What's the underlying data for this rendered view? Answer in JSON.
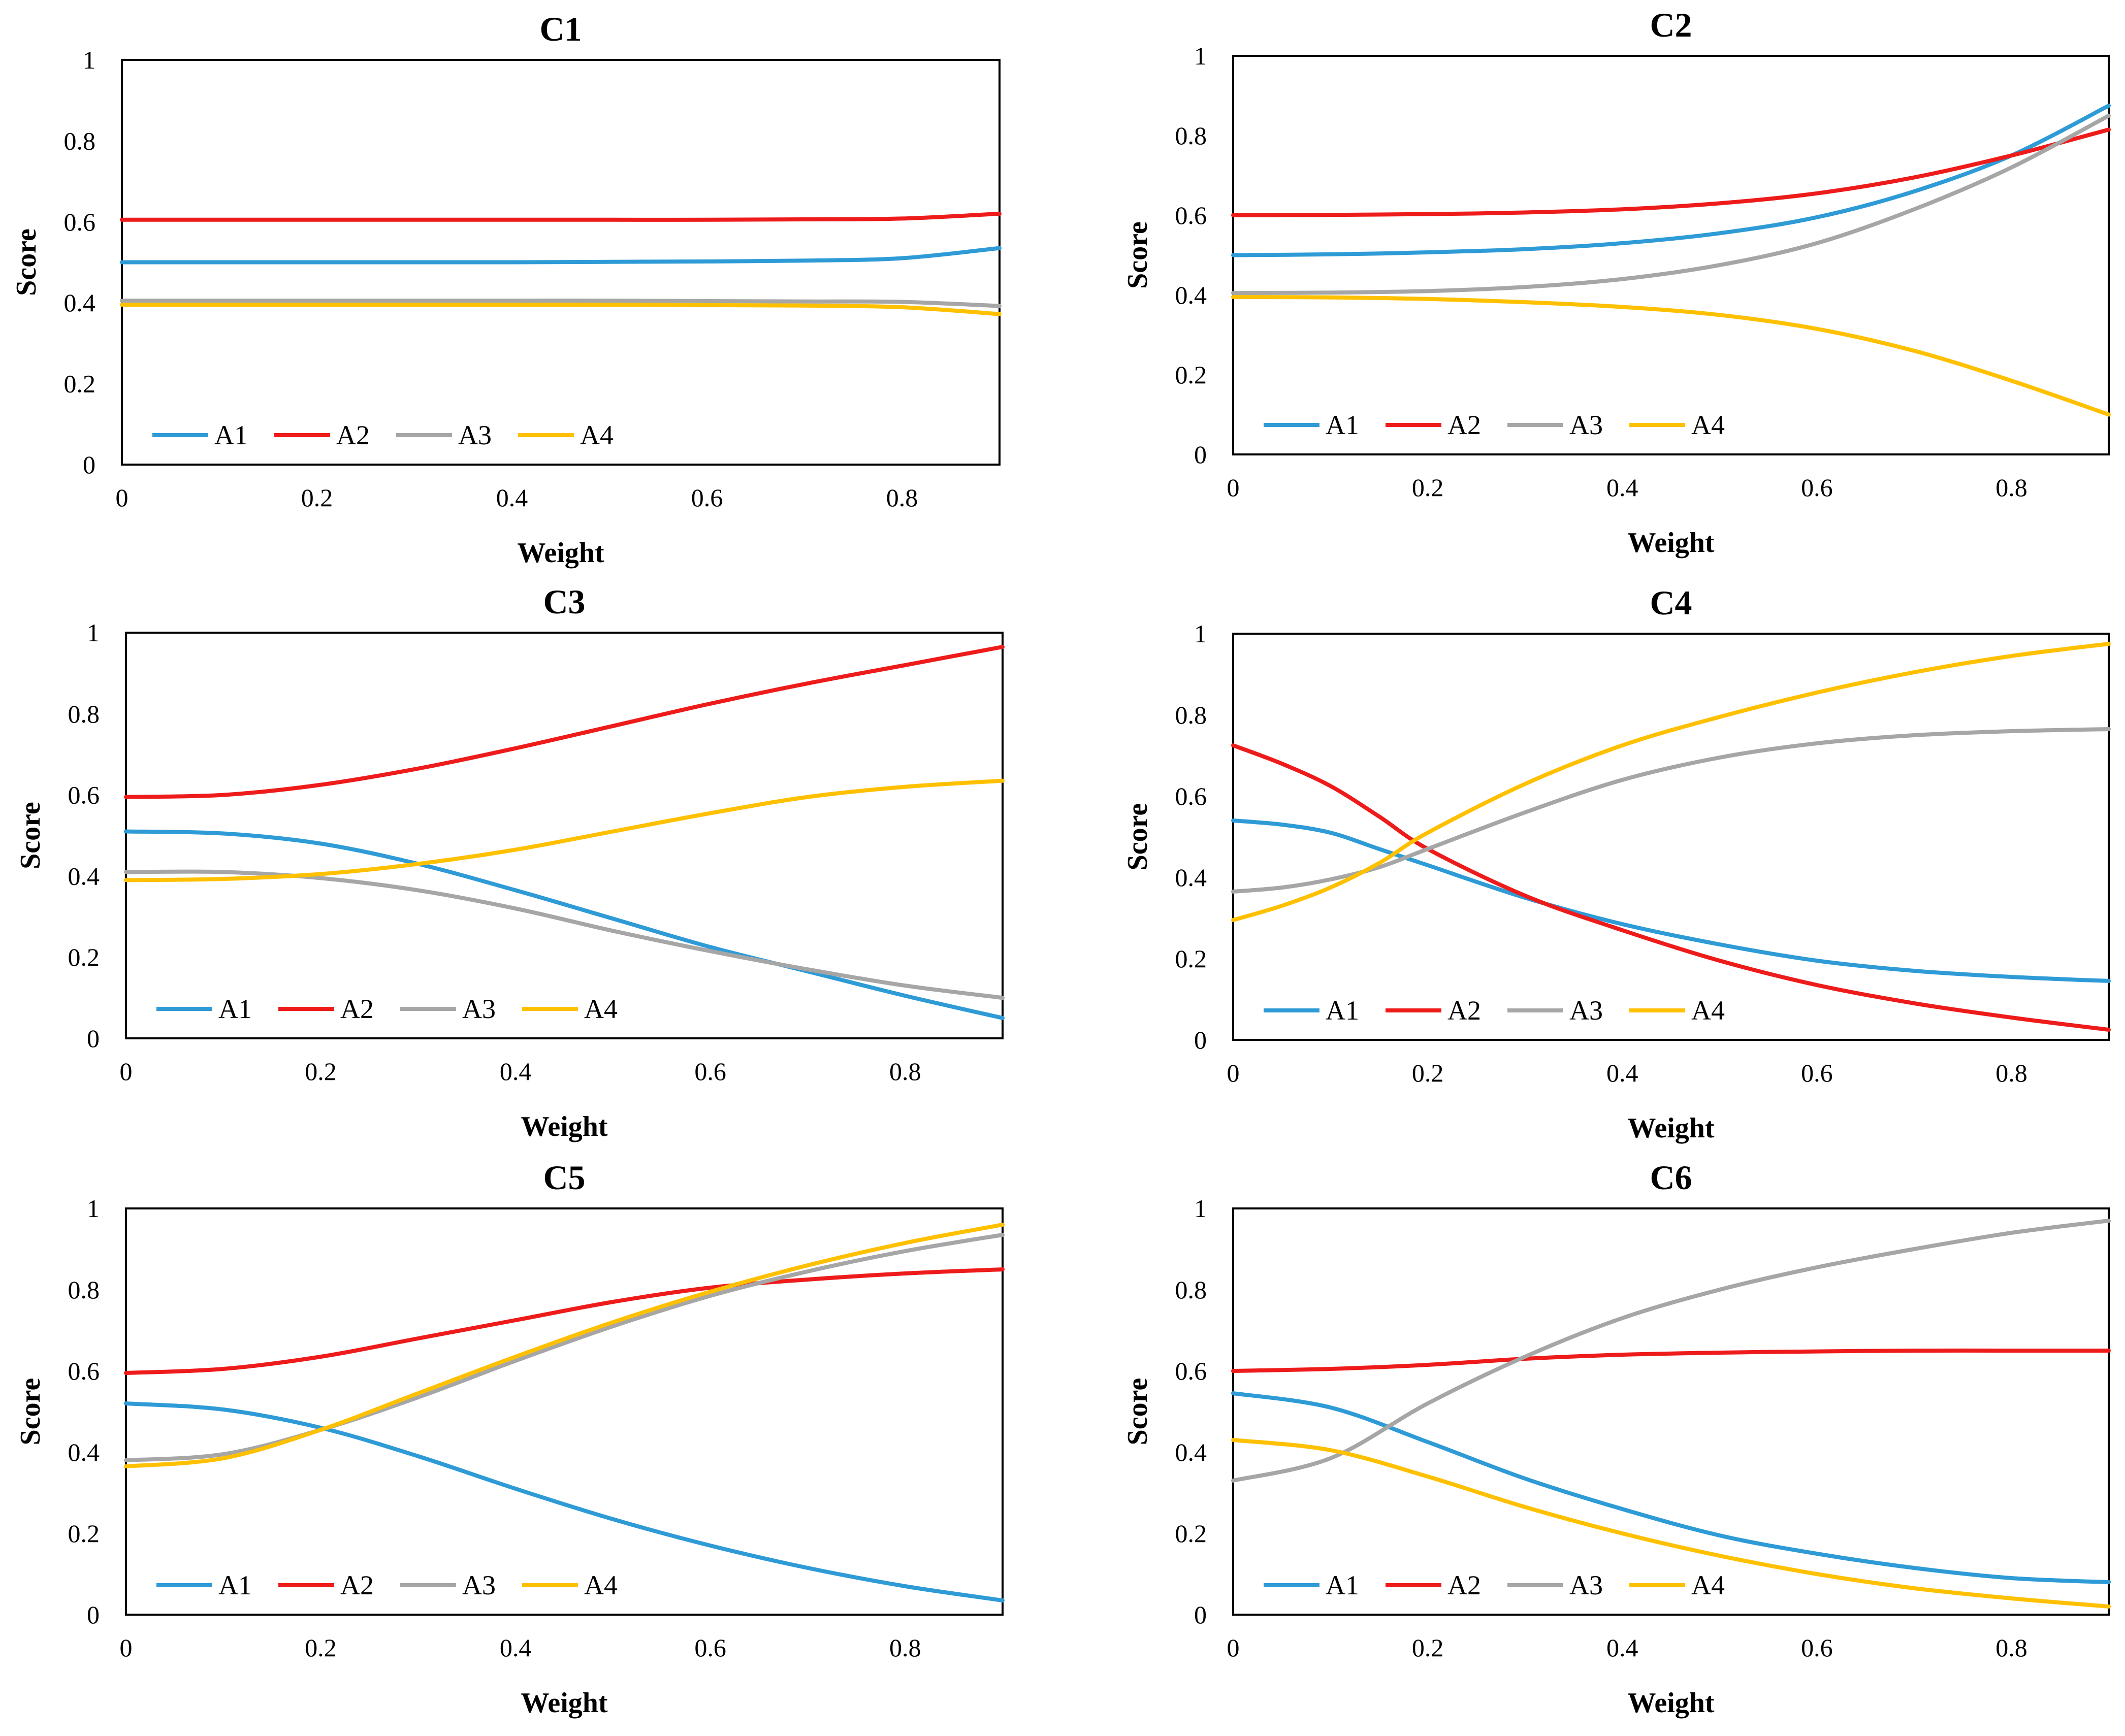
{
  "colors": {
    "A1": "#2e9bd6",
    "A2": "#ee1b1b",
    "A3": "#a6a6a6",
    "A4": "#ffc000"
  },
  "chart_data": [
    {
      "type": "line",
      "title": "C1",
      "xlabel": "Weight",
      "ylabel": "Score",
      "xlim": [
        0,
        0.9
      ],
      "ylim": [
        0,
        1
      ],
      "xticks": [
        "0",
        "0.2",
        "0.4",
        "0.6",
        "0.8"
      ],
      "yticks": [
        "0",
        "0.2",
        "0.4",
        "0.6",
        "0.8",
        "1"
      ],
      "legend_position": "bottom-left",
      "x": [
        0,
        0.1,
        0.2,
        0.3,
        0.4,
        0.5,
        0.6,
        0.7,
        0.8,
        0.9
      ],
      "series": [
        {
          "name": "A1",
          "values": [
            0.5,
            0.5,
            0.5,
            0.5,
            0.5,
            0.501,
            0.502,
            0.504,
            0.51,
            0.535
          ]
        },
        {
          "name": "A2",
          "values": [
            0.605,
            0.605,
            0.605,
            0.605,
            0.605,
            0.605,
            0.605,
            0.606,
            0.608,
            0.62
          ]
        },
        {
          "name": "A3",
          "values": [
            0.405,
            0.405,
            0.405,
            0.405,
            0.405,
            0.405,
            0.404,
            0.403,
            0.402,
            0.392
          ]
        },
        {
          "name": "A4",
          "values": [
            0.395,
            0.395,
            0.395,
            0.395,
            0.395,
            0.395,
            0.394,
            0.393,
            0.389,
            0.372
          ]
        }
      ]
    },
    {
      "type": "line",
      "title": "C2",
      "xlabel": "Weight",
      "ylabel": "Score",
      "xlim": [
        0,
        0.9
      ],
      "ylim": [
        0,
        1
      ],
      "xticks": [
        "0",
        "0.2",
        "0.4",
        "0.6",
        "0.8"
      ],
      "yticks": [
        "0",
        "0.2",
        "0.4",
        "0.6",
        "0.8",
        "1"
      ],
      "legend_position": "bottom-left",
      "x": [
        0,
        0.1,
        0.2,
        0.3,
        0.4,
        0.5,
        0.6,
        0.7,
        0.8,
        0.9
      ],
      "series": [
        {
          "name": "A1",
          "values": [
            0.5,
            0.502,
            0.507,
            0.515,
            0.53,
            0.555,
            0.595,
            0.66,
            0.75,
            0.875
          ]
        },
        {
          "name": "A2",
          "values": [
            0.6,
            0.601,
            0.603,
            0.607,
            0.615,
            0.63,
            0.655,
            0.695,
            0.75,
            0.815
          ]
        },
        {
          "name": "A3",
          "values": [
            0.405,
            0.406,
            0.41,
            0.42,
            0.44,
            0.475,
            0.53,
            0.615,
            0.72,
            0.85
          ]
        },
        {
          "name": "A4",
          "values": [
            0.395,
            0.394,
            0.39,
            0.382,
            0.37,
            0.35,
            0.315,
            0.26,
            0.185,
            0.1
          ]
        }
      ]
    },
    {
      "type": "line",
      "title": "C3",
      "xlabel": "Weight",
      "ylabel": "Score",
      "xlim": [
        0,
        0.9
      ],
      "ylim": [
        0,
        1
      ],
      "xticks": [
        "0",
        "0.2",
        "0.4",
        "0.6",
        "0.8"
      ],
      "yticks": [
        "0",
        "0.2",
        "0.4",
        "0.6",
        "0.8",
        "1"
      ],
      "legend_position": "bottom-left",
      "x": [
        0,
        0.1,
        0.2,
        0.3,
        0.4,
        0.5,
        0.6,
        0.7,
        0.8,
        0.9
      ],
      "series": [
        {
          "name": "A1",
          "values": [
            0.51,
            0.505,
            0.48,
            0.43,
            0.365,
            0.295,
            0.225,
            0.165,
            0.105,
            0.05
          ]
        },
        {
          "name": "A2",
          "values": [
            0.595,
            0.6,
            0.625,
            0.665,
            0.715,
            0.77,
            0.825,
            0.875,
            0.92,
            0.965
          ]
        },
        {
          "name": "A3",
          "values": [
            0.41,
            0.41,
            0.395,
            0.365,
            0.32,
            0.265,
            0.215,
            0.17,
            0.13,
            0.1
          ]
        },
        {
          "name": "A4",
          "values": [
            0.39,
            0.393,
            0.405,
            0.43,
            0.465,
            0.51,
            0.555,
            0.595,
            0.62,
            0.635
          ]
        }
      ]
    },
    {
      "type": "line",
      "title": "C4",
      "xlabel": "Weight",
      "ylabel": "Score",
      "xlim": [
        0,
        0.9
      ],
      "ylim": [
        0,
        1
      ],
      "xticks": [
        "0",
        "0.2",
        "0.4",
        "0.6",
        "0.8"
      ],
      "yticks": [
        "0",
        "0.2",
        "0.4",
        "0.6",
        "0.8",
        "1"
      ],
      "legend_position": "bottom-left",
      "x": [
        0,
        0.05,
        0.1,
        0.15,
        0.2,
        0.3,
        0.4,
        0.5,
        0.6,
        0.7,
        0.8,
        0.9
      ],
      "series": [
        {
          "name": "A1",
          "values": [
            0.54,
            0.53,
            0.51,
            0.47,
            0.43,
            0.35,
            0.285,
            0.235,
            0.195,
            0.17,
            0.155,
            0.145
          ]
        },
        {
          "name": "A2",
          "values": [
            0.725,
            0.68,
            0.625,
            0.55,
            0.47,
            0.355,
            0.27,
            0.195,
            0.135,
            0.09,
            0.055,
            0.025
          ]
        },
        {
          "name": "A3",
          "values": [
            0.365,
            0.375,
            0.395,
            0.425,
            0.47,
            0.56,
            0.64,
            0.695,
            0.73,
            0.75,
            0.76,
            0.765
          ]
        },
        {
          "name": "A4",
          "values": [
            0.295,
            0.33,
            0.375,
            0.435,
            0.51,
            0.63,
            0.725,
            0.795,
            0.855,
            0.905,
            0.945,
            0.975
          ]
        }
      ]
    },
    {
      "type": "line",
      "title": "C5",
      "xlabel": "Weight",
      "ylabel": "Score",
      "xlim": [
        0,
        0.9
      ],
      "ylim": [
        0,
        1
      ],
      "xticks": [
        "0",
        "0.2",
        "0.4",
        "0.6",
        "0.8"
      ],
      "yticks": [
        "0",
        "0.2",
        "0.4",
        "0.6",
        "0.8",
        "1"
      ],
      "legend_position": "bottom-left",
      "x": [
        0,
        0.1,
        0.2,
        0.3,
        0.4,
        0.5,
        0.6,
        0.7,
        0.8,
        0.9
      ],
      "series": [
        {
          "name": "A1",
          "values": [
            0.52,
            0.505,
            0.46,
            0.39,
            0.31,
            0.235,
            0.17,
            0.115,
            0.07,
            0.035
          ]
        },
        {
          "name": "A2",
          "values": [
            0.595,
            0.605,
            0.635,
            0.68,
            0.725,
            0.77,
            0.805,
            0.825,
            0.84,
            0.85
          ]
        },
        {
          "name": "A3",
          "values": [
            0.38,
            0.395,
            0.455,
            0.535,
            0.625,
            0.71,
            0.785,
            0.845,
            0.895,
            0.935
          ]
        },
        {
          "name": "A4",
          "values": [
            0.365,
            0.385,
            0.455,
            0.545,
            0.635,
            0.72,
            0.795,
            0.86,
            0.915,
            0.96
          ]
        }
      ]
    },
    {
      "type": "line",
      "title": "C6",
      "xlabel": "Weight",
      "ylabel": "Score",
      "xlim": [
        0,
        0.9
      ],
      "ylim": [
        0,
        1
      ],
      "xticks": [
        "0",
        "0.2",
        "0.4",
        "0.6",
        "0.8"
      ],
      "yticks": [
        "0",
        "0.2",
        "0.4",
        "0.6",
        "0.8",
        "1"
      ],
      "legend_position": "bottom-left",
      "x": [
        0,
        0.1,
        0.2,
        0.3,
        0.4,
        0.5,
        0.6,
        0.7,
        0.8,
        0.9
      ],
      "series": [
        {
          "name": "A1",
          "values": [
            0.545,
            0.51,
            0.425,
            0.335,
            0.26,
            0.195,
            0.15,
            0.115,
            0.09,
            0.08
          ]
        },
        {
          "name": "A2",
          "values": [
            0.6,
            0.605,
            0.615,
            0.63,
            0.64,
            0.645,
            0.648,
            0.65,
            0.65,
            0.65
          ]
        },
        {
          "name": "A3",
          "values": [
            0.33,
            0.385,
            0.52,
            0.635,
            0.73,
            0.8,
            0.855,
            0.9,
            0.94,
            0.97
          ]
        },
        {
          "name": "A4",
          "values": [
            0.43,
            0.405,
            0.34,
            0.265,
            0.2,
            0.145,
            0.1,
            0.065,
            0.04,
            0.02
          ]
        }
      ]
    }
  ]
}
